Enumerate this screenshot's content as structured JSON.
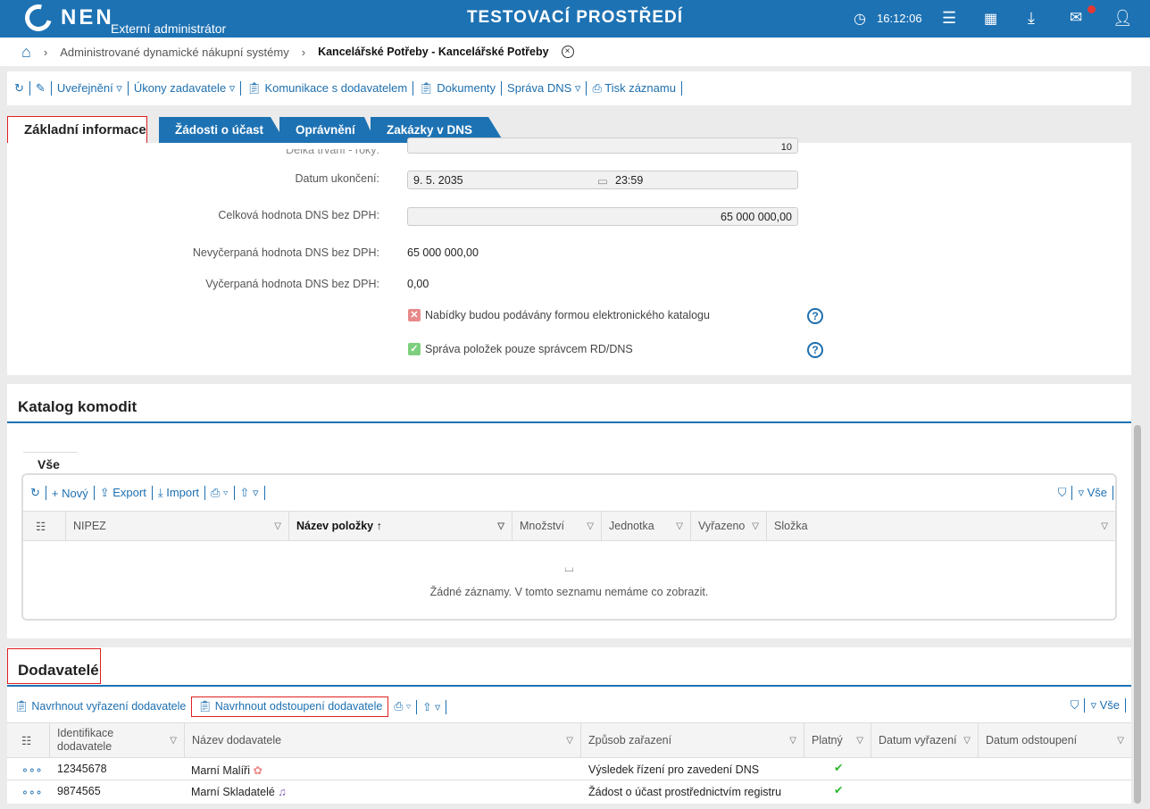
{
  "header": {
    "logo": "NEN",
    "role": "Externí administrátor",
    "env_title": "TESTOVACÍ PROSTŘEDÍ",
    "time": "16:12:06",
    "icons": [
      "clock-icon",
      "menu-icon",
      "calendar-icon",
      "download-icon",
      "mail-icon",
      "user-icon"
    ]
  },
  "breadcrumb": {
    "items": [
      "Administrované dynamické nákupní systémy",
      "Kancelářské Potřeby - Kancelářské Potřeby"
    ]
  },
  "toolbar": {
    "items": [
      "Uveřejnění",
      "Úkony zadavatele",
      "Komunikace s dodavatelem",
      "Dokumenty",
      "Správa DNS",
      "Tisk záznamu"
    ]
  },
  "tabs": [
    "Základní informace",
    "Žádosti o účast",
    "Oprávnění",
    "Zakázky v DNS"
  ],
  "form": {
    "duration_label": "Délka trvání - roky:",
    "duration_value": "10",
    "end_label": "Datum ukončení:",
    "end_date": "9. 5. 2035",
    "end_time": "23:59",
    "total_label": "Celková hodnota DNS bez DPH:",
    "total_value": "65 000 000,00",
    "remaining_label": "Nevyčerpaná hodnota DNS bez DPH:",
    "remaining_value": "65 000 000,00",
    "used_label": "Vyčerpaná hodnota DNS bez DPH:",
    "used_value": "0,00",
    "checks": [
      {
        "label": "Nabídky budou podávány formou elektronického katalogu",
        "checked": false
      },
      {
        "label": "Správa položek pouze správcem RD/DNS",
        "checked": true
      }
    ]
  },
  "catalog": {
    "title": "Katalog komodit",
    "subtab": "Vše",
    "toolbar": [
      "Nový",
      "Export",
      "Import"
    ],
    "filter_all": "Vše",
    "columns": [
      "NIPEZ",
      "Název položky",
      "Množství",
      "Jednotka",
      "Vyřazeno",
      "Složka"
    ],
    "empty": "Žádné záznamy. V tomto seznamu nemáme co zobrazit."
  },
  "suppliers": {
    "title": "Dodavatelé",
    "toolbar": [
      "Navrhnout vyřazení dodavatele",
      "Navrhnout odstoupení dodavatele"
    ],
    "filter_all": "Vše",
    "columns": [
      "Identifikace dodavatele",
      "Název dodavatele",
      "Způsob zařazení",
      "Platný",
      "Datum vyřazení",
      "Datum odstoupení"
    ],
    "rows": [
      {
        "id": "12345678",
        "name": "Marní Malíři",
        "icon": "palette-icon",
        "method": "Výsledek řízení pro zavedení DNS",
        "valid": true
      },
      {
        "id": "9874565",
        "name": "Marní Skladatelé",
        "icon": "music-note-icon",
        "method": "Žádost o účast prostřednictvím registru",
        "valid": true
      }
    ]
  },
  "colors": {
    "brand": "#1d72b3",
    "highlight": "#e02020",
    "check_ok": "#2eb82e"
  }
}
